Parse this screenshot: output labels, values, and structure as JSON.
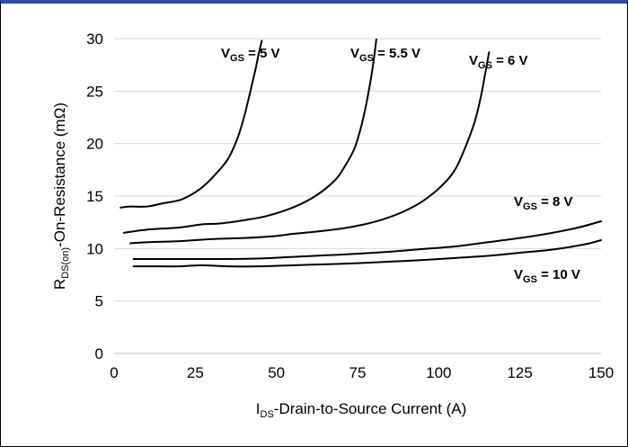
{
  "chart_data": {
    "type": "line",
    "xlabel": {
      "main": "I",
      "sub": "DS",
      "rest": "-Drain-to-Source Current (A)"
    },
    "ylabel": {
      "main": "R",
      "sub": "DS(on)",
      "rest": "-On-Resistance (mΩ)"
    },
    "xlim": [
      0,
      150
    ],
    "ylim": [
      0,
      30
    ],
    "xticks": [
      0,
      25,
      50,
      75,
      100,
      125,
      150
    ],
    "yticks": [
      0,
      5,
      10,
      15,
      20,
      25,
      30
    ],
    "grid": "horizontal",
    "series": [
      {
        "name": {
          "main": "V",
          "sub": "GS",
          "rest": " = 5 V"
        },
        "x": [
          2,
          5,
          10,
          15,
          20,
          23,
          27,
          31,
          35,
          38,
          40,
          42,
          43.5,
          44.5,
          45.5
        ],
        "y": [
          13.9,
          14.0,
          14.0,
          14.3,
          14.6,
          15.0,
          15.8,
          17.0,
          18.5,
          20.5,
          22.5,
          25.0,
          27.0,
          28.5,
          29.8
        ]
      },
      {
        "name": {
          "main": "V",
          "sub": "GS",
          "rest": " = 5.5 V"
        },
        "x": [
          3,
          10,
          20,
          27,
          33,
          40,
          47,
          55,
          62,
          68,
          71,
          74,
          76,
          77.5,
          79,
          80,
          80.8
        ],
        "y": [
          11.5,
          11.8,
          12.0,
          12.3,
          12.4,
          12.7,
          13.1,
          13.9,
          15.0,
          16.5,
          17.8,
          19.5,
          21.5,
          23.5,
          26.0,
          28.0,
          30.0
        ]
      },
      {
        "name": {
          "main": "V",
          "sub": "GS",
          "rest": " = 6 V"
        },
        "x": [
          5,
          10,
          20,
          30,
          40,
          50,
          55,
          62,
          70,
          77,
          83,
          89,
          95,
          101,
          105,
          108,
          111,
          113,
          114.5,
          115.5
        ],
        "y": [
          10.5,
          10.6,
          10.7,
          10.9,
          11.0,
          11.2,
          11.4,
          11.6,
          11.9,
          12.3,
          12.8,
          13.5,
          14.5,
          16.0,
          17.5,
          19.5,
          22.0,
          24.5,
          27.0,
          28.7
        ]
      },
      {
        "name": {
          "main": "V",
          "sub": "GS",
          "rest": " = 8 V"
        },
        "x": [
          6,
          15,
          25,
          35,
          45,
          55,
          65,
          75,
          85,
          95,
          105,
          115,
          125,
          135,
          143,
          150
        ],
        "y": [
          9.0,
          9.0,
          9.0,
          9.0,
          9.05,
          9.2,
          9.35,
          9.5,
          9.7,
          9.95,
          10.2,
          10.6,
          11.0,
          11.5,
          12.0,
          12.6
        ]
      },
      {
        "name": {
          "main": "V",
          "sub": "GS",
          "rest": " = 10 V"
        },
        "x": [
          6,
          15,
          20,
          27,
          35,
          45,
          55,
          65,
          75,
          85,
          95,
          105,
          115,
          125,
          135,
          145,
          150
        ],
        "y": [
          8.3,
          8.3,
          8.3,
          8.4,
          8.3,
          8.3,
          8.4,
          8.5,
          8.6,
          8.75,
          8.9,
          9.1,
          9.3,
          9.6,
          9.9,
          10.4,
          10.8
        ]
      }
    ]
  }
}
